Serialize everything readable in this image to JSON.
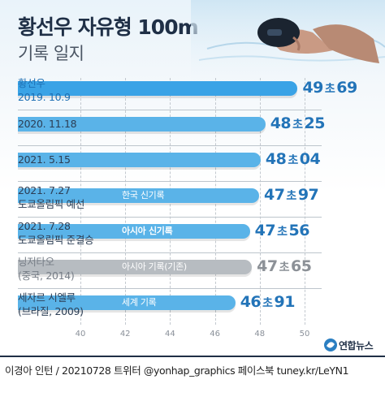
{
  "header": {
    "title": "황선우 자유형 100m",
    "subtitle": "기록 일지"
  },
  "colors": {
    "bar_blue": "#5ab3e8",
    "bar_blue_first": "#3aa3e6",
    "bar_gray": "#b7bcc1",
    "value_blue": "#2374b8"
  },
  "chart_data": {
    "type": "bar",
    "orientation": "horizontal",
    "xlim": [
      40,
      50
    ],
    "xticks": [
      "40",
      "42",
      "44",
      "46",
      "48",
      "50"
    ],
    "unit_label": "초",
    "grid": true,
    "records": [
      {
        "line1": "황선우",
        "line2": "2019. 10.9",
        "value": 49.69,
        "sec": "49",
        "hund": "69",
        "tag": "",
        "color": "blue",
        "emph": "first"
      },
      {
        "line1": "2020. 11.18",
        "line2": "",
        "value": 48.25,
        "sec": "48",
        "hund": "25",
        "tag": "",
        "color": "blue",
        "emph": ""
      },
      {
        "line1": "2021. 5.15",
        "line2": "",
        "value": 48.04,
        "sec": "48",
        "hund": "04",
        "tag": "",
        "color": "blue",
        "emph": ""
      },
      {
        "line1": "2021. 7.27",
        "line2": "도쿄올림픽 예선",
        "value": 47.97,
        "sec": "47",
        "hund": "97",
        "tag": "한국 신기록",
        "color": "blue",
        "emph": ""
      },
      {
        "line1": "2021. 7.28",
        "line2": "도쿄올림픽 준결승",
        "value": 47.56,
        "sec": "47",
        "hund": "56",
        "tag": "아시아 신기록",
        "color": "blue",
        "emph": "bold"
      },
      {
        "line1": "닝저타오",
        "line2": "(중국, 2014)",
        "value": 47.65,
        "sec": "47",
        "hund": "65",
        "tag": "아시아 기록(기존)",
        "color": "gray",
        "emph": ""
      },
      {
        "line1": "세자르 시엘루",
        "line2": "(브라질, 2009)",
        "value": 46.91,
        "sec": "46",
        "hund": "91",
        "tag": "세계 기록",
        "color": "blue",
        "emph": ""
      }
    ]
  },
  "footer": {
    "credit": "이경아 인턴 / 20210728 트위터 @yonhap_graphics  페이스북 tuney.kr/LeYN1",
    "logo": "연합뉴스"
  }
}
